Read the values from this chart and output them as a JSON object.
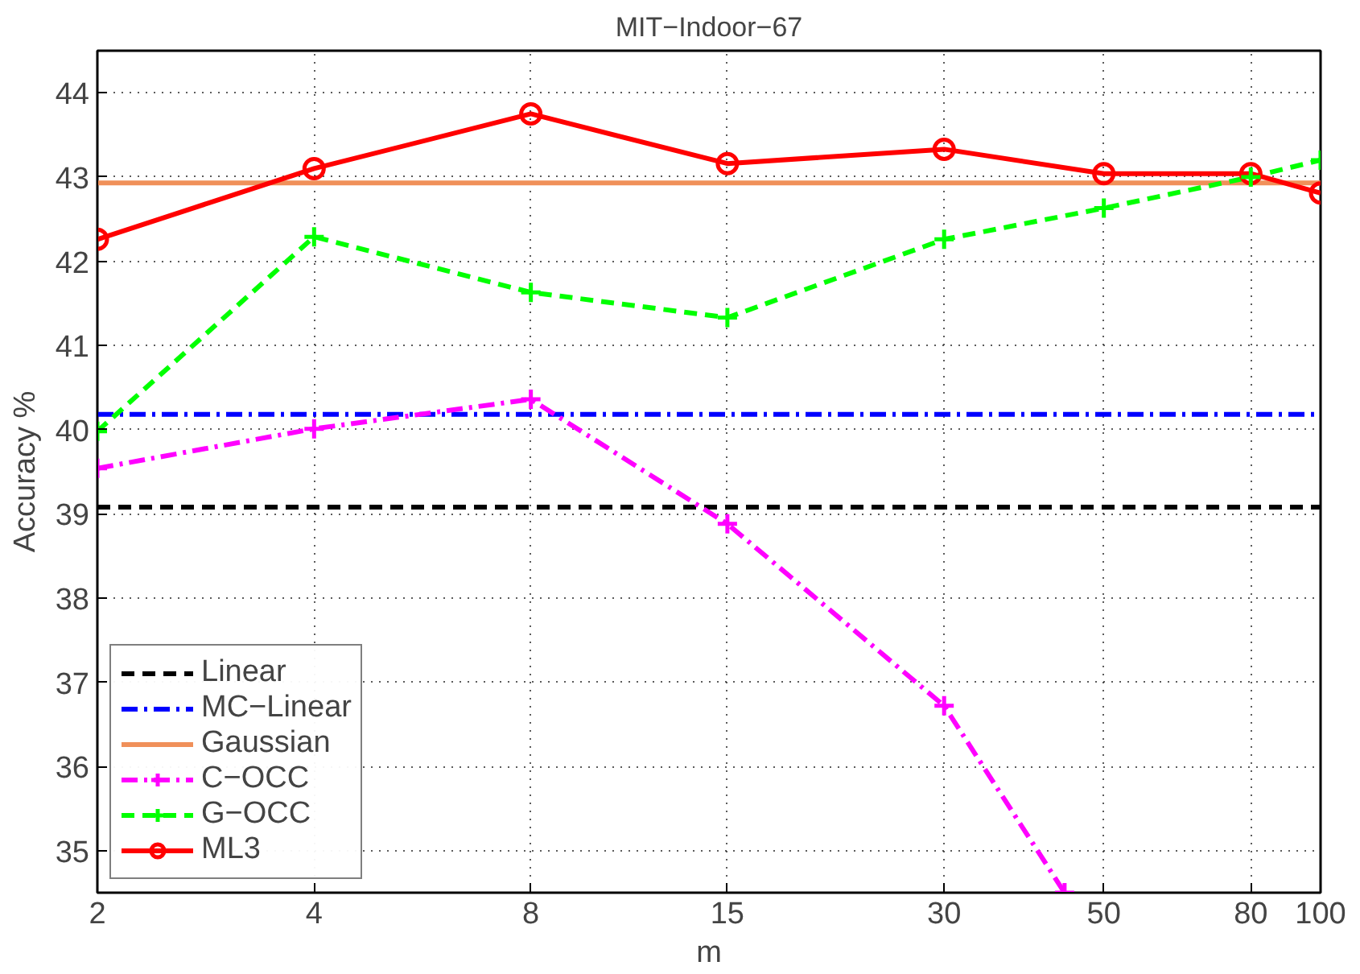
{
  "chart_data": {
    "type": "line",
    "title": "MIT−Indoor−67",
    "xlabel": "m",
    "ylabel": "Accuracy %",
    "log": "x",
    "xlim": [
      2,
      100
    ],
    "ylim": [
      34.5,
      44.5
    ],
    "xticks": [
      2,
      4,
      8,
      15,
      30,
      50,
      80,
      100
    ],
    "yticks": [
      35,
      36,
      37,
      38,
      39,
      40,
      41,
      42,
      43,
      44
    ],
    "grid": true,
    "legend": "bottom left",
    "x": [
      2,
      4,
      8,
      15,
      30,
      50,
      80,
      100
    ],
    "series": [
      {
        "name": "Linear",
        "color": "#000000",
        "line_style": "dashed",
        "marker": "none",
        "x": [
          2,
          100
        ],
        "values": [
          39.08,
          39.08
        ]
      },
      {
        "name": "MC−Linear",
        "color": "#0000ff",
        "line_style": "dashdot",
        "marker": "none",
        "x": [
          2,
          100
        ],
        "values": [
          40.18,
          40.18
        ]
      },
      {
        "name": "Gaussian",
        "color": "#f0905a",
        "line_style": "solid",
        "marker": "none",
        "x": [
          2,
          100
        ],
        "values": [
          42.93,
          42.93
        ]
      },
      {
        "name": "C−OCC",
        "color": "#ff00ff",
        "line_style": "dashdot",
        "marker": "cross",
        "x": [
          2,
          4,
          8,
          15,
          30,
          44.1
        ],
        "values": [
          39.54,
          40.01,
          40.36,
          38.88,
          36.72,
          34.5
        ]
      },
      {
        "name": "G−OCC",
        "color": "#00ff00",
        "line_style": "dashed",
        "marker": "cross",
        "values": [
          39.98,
          42.29,
          41.63,
          41.33,
          42.26,
          42.63,
          43.0,
          43.2
        ]
      },
      {
        "name": "ML3",
        "color": "#ff0000",
        "line_style": "solid",
        "marker": "circle",
        "values": [
          42.26,
          43.1,
          43.75,
          43.16,
          43.33,
          43.04,
          43.04,
          42.81
        ]
      }
    ]
  }
}
